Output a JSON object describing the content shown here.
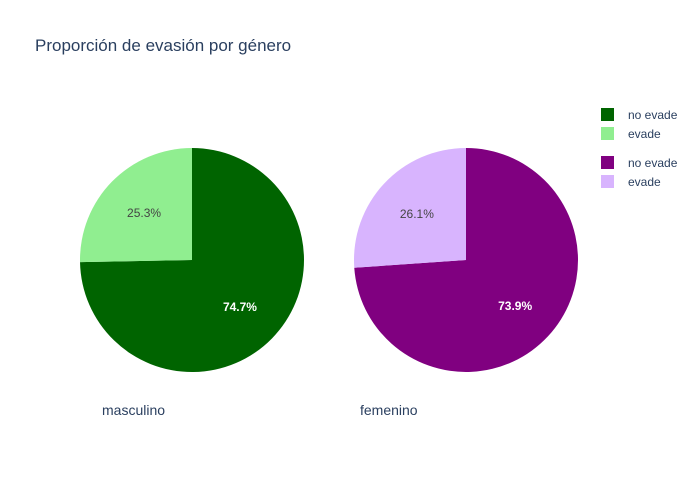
{
  "chart_data": {
    "type": "pie",
    "title": "Proporción de evasión por género",
    "pies": [
      {
        "name": "masculino",
        "slices": [
          {
            "label": "no evade",
            "value": 74.7,
            "display": "74.7%",
            "color": "#006400",
            "text_color": "#ffffff"
          },
          {
            "label": "evade",
            "value": 25.3,
            "display": "25.3%",
            "color": "#90ee90",
            "text_color": "#444444"
          }
        ]
      },
      {
        "name": "femenino",
        "slices": [
          {
            "label": "no evade",
            "value": 73.9,
            "display": "73.9%",
            "color": "#800080",
            "text_color": "#ffffff"
          },
          {
            "label": "evade",
            "value": 26.1,
            "display": "26.1%",
            "color": "#d8b4fe",
            "text_color": "#444444"
          }
        ]
      }
    ],
    "legend": {
      "placement": "top-right",
      "groups": [
        [
          {
            "label": "no evade",
            "color": "#006400"
          },
          {
            "label": "evade",
            "color": "#90ee90"
          }
        ],
        [
          {
            "label": "no evade",
            "color": "#800080"
          },
          {
            "label": "evade",
            "color": "#d8b4fe"
          }
        ]
      ]
    }
  }
}
